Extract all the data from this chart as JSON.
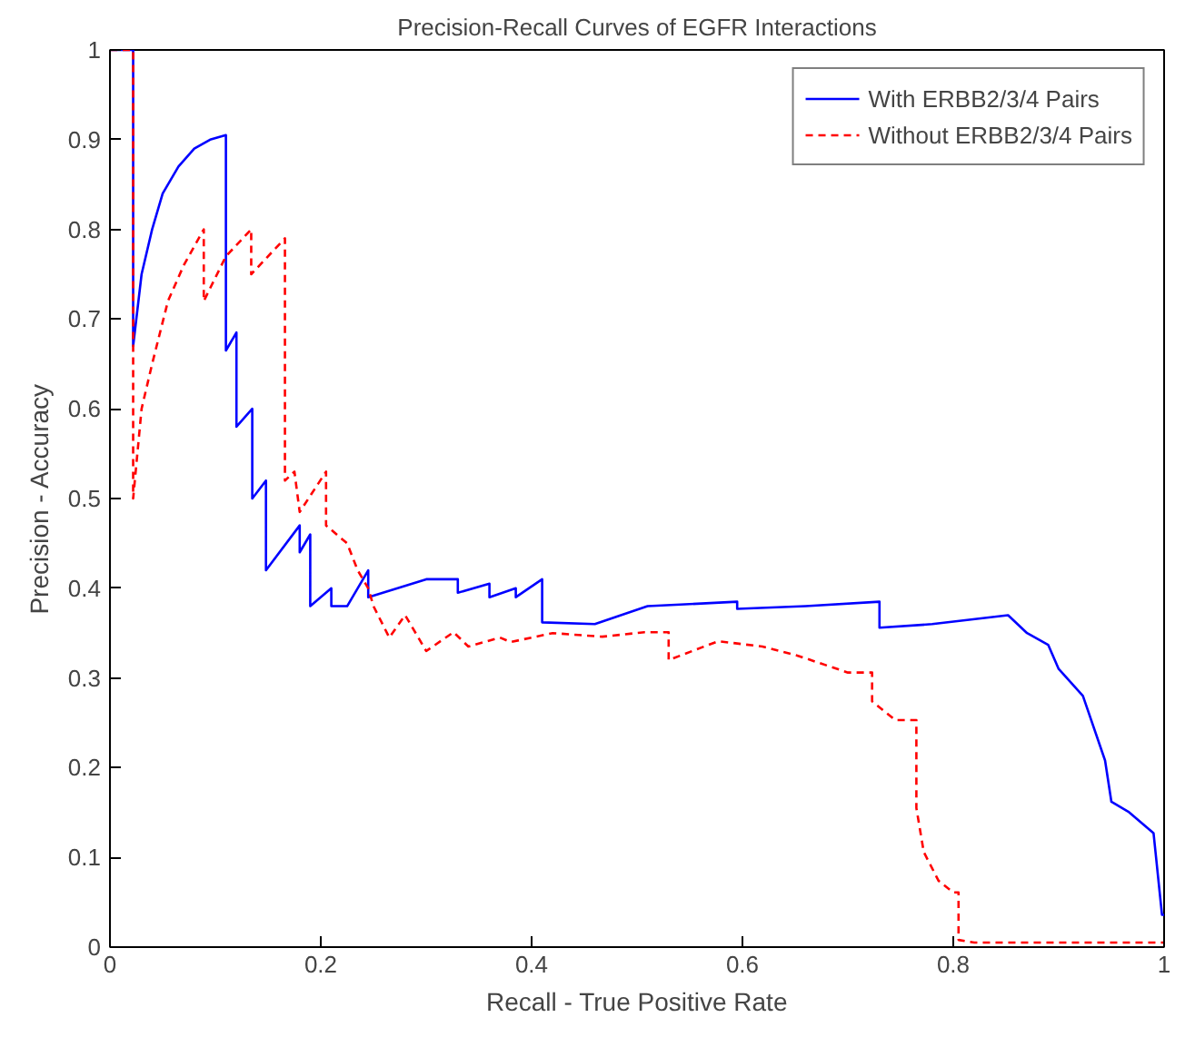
{
  "chart_data": {
    "type": "line",
    "title": "Precision-Recall Curves of EGFR Interactions",
    "xlabel": "Recall - True Positive Rate",
    "ylabel": "Precision - Accuracy",
    "xlim": [
      0,
      1
    ],
    "ylim": [
      0,
      1
    ],
    "xticks": [
      0,
      0.2,
      0.4,
      0.6,
      0.8,
      1
    ],
    "yticks": [
      0,
      0.1,
      0.2,
      0.3,
      0.4,
      0.5,
      0.6,
      0.7,
      0.8,
      0.9,
      1
    ],
    "grid": false,
    "legend": "top right",
    "marker": "none",
    "series": [
      {
        "name": "With ERBB2/3/4 Pairs",
        "color": "#0000ff",
        "line_style": "solid",
        "x": [
          0,
          0.022,
          0.022,
          0.03,
          0.04,
          0.05,
          0.065,
          0.08,
          0.095,
          0.11,
          0.11,
          0.12,
          0.12,
          0.135,
          0.135,
          0.148,
          0.148,
          0.18,
          0.18,
          0.19,
          0.19,
          0.21,
          0.21,
          0.225,
          0.245,
          0.245,
          0.3,
          0.33,
          0.33,
          0.36,
          0.36,
          0.385,
          0.385,
          0.41,
          0.41,
          0.46,
          0.51,
          0.595,
          0.595,
          0.66,
          0.73,
          0.73,
          0.78,
          0.852,
          0.87,
          0.87,
          0.89,
          0.89,
          0.9,
          0.9,
          0.923,
          0.923,
          0.944,
          0.944,
          0.95,
          0.95,
          0.966,
          0.966,
          0.99,
          0.99,
          0.998,
          0.998,
          1
        ],
        "values": [
          1,
          1,
          0.67,
          0.75,
          0.8,
          0.84,
          0.87,
          0.89,
          0.9,
          0.905,
          0.665,
          0.685,
          0.58,
          0.6,
          0.5,
          0.52,
          0.42,
          0.47,
          0.44,
          0.46,
          0.38,
          0.4,
          0.38,
          0.38,
          0.42,
          0.39,
          0.41,
          0.41,
          0.395,
          0.405,
          0.39,
          0.4,
          0.39,
          0.41,
          0.362,
          0.36,
          0.38,
          0.385,
          0.377,
          0.38,
          0.385,
          0.356,
          0.36,
          0.37,
          0.35,
          0.35,
          0.337,
          0.337,
          0.31,
          0.31,
          0.28,
          0.28,
          0.208,
          0.208,
          0.162,
          0.162,
          0.151,
          0.151,
          0.127,
          0.127,
          0.036,
          0.036,
          0.036
        ]
      },
      {
        "name": "Without ERBB2/3/4 Pairs",
        "color": "#ff0000",
        "line_style": "dashed",
        "x": [
          0,
          0.022,
          0.022,
          0.03,
          0.04,
          0.055,
          0.07,
          0.089,
          0.089,
          0.11,
          0.134,
          0.134,
          0.166,
          0.166,
          0.175,
          0.18,
          0.205,
          0.205,
          0.225,
          0.235,
          0.245,
          0.25,
          0.265,
          0.28,
          0.3,
          0.326,
          0.34,
          0.37,
          0.38,
          0.42,
          0.467,
          0.507,
          0.53,
          0.53,
          0.577,
          0.619,
          0.652,
          0.7,
          0.723,
          0.723,
          0.745,
          0.765,
          0.765,
          0.772,
          0.786,
          0.8,
          0.805,
          0.805,
          0.82,
          1
        ],
        "values": [
          1,
          1,
          0.5,
          0.6,
          0.65,
          0.72,
          0.76,
          0.8,
          0.72,
          0.77,
          0.8,
          0.75,
          0.79,
          0.52,
          0.53,
          0.485,
          0.53,
          0.47,
          0.45,
          0.42,
          0.4,
          0.38,
          0.345,
          0.37,
          0.33,
          0.351,
          0.335,
          0.345,
          0.34,
          0.35,
          0.346,
          0.351,
          0.351,
          0.32,
          0.341,
          0.335,
          0.325,
          0.306,
          0.306,
          0.274,
          0.253,
          0.253,
          0.155,
          0.106,
          0.074,
          0.061,
          0.061,
          0.008,
          0.005,
          0.005
        ]
      }
    ]
  }
}
